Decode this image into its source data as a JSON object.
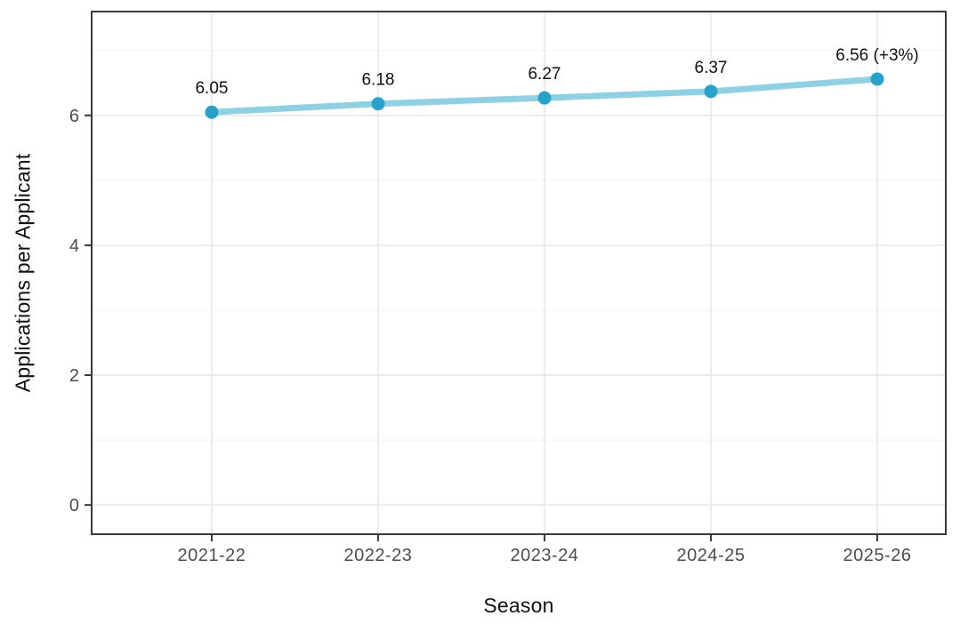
{
  "chart_data": {
    "type": "line",
    "title": "",
    "xlabel": "Season",
    "ylabel": "Applications per Applicant",
    "categories": [
      "2021-22",
      "2022-23",
      "2023-24",
      "2024-25",
      "2025-26"
    ],
    "series": [
      {
        "name": "Applications per Applicant",
        "values": [
          6.05,
          6.18,
          6.27,
          6.37,
          6.56
        ]
      }
    ],
    "point_labels": [
      "6.05",
      "6.18",
      "6.27",
      "6.37",
      "6.56 (+3%)"
    ],
    "ylim": [
      -0.45,
      7.6
    ],
    "yticks": [
      0,
      2,
      4,
      6
    ],
    "yminor": [
      1,
      3,
      5,
      7
    ],
    "grid": "horizontal major+minor, vertical major at categories",
    "legend": "none",
    "colors": {
      "line": "#8ed1e4",
      "point": "#27a2c8",
      "tick_text": "#4d4d4d",
      "axis_title": "#111111",
      "value_label": "#111111",
      "panel_border": "#3a3a3a",
      "tick_mark": "#3a3a3a",
      "grid_major": "#e7e7e7",
      "grid_minor": "#f4f4f4",
      "background": "#ffffff"
    }
  }
}
